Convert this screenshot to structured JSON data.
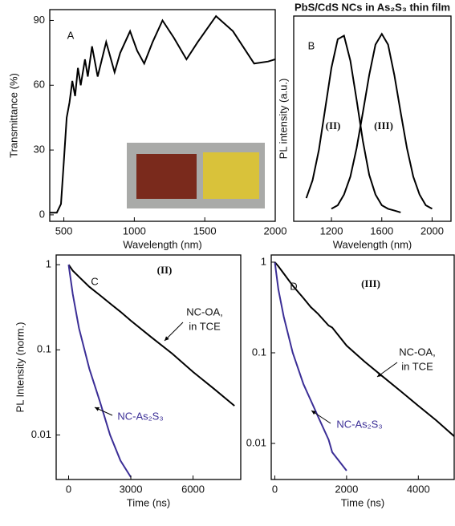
{
  "chart_data": [
    {
      "type": "line",
      "panel_label": "A",
      "xlabel": "Wavelength (nm)",
      "ylabel": "Transmittance (%)",
      "x": [
        400,
        450,
        480,
        500,
        520,
        540,
        560,
        580,
        600,
        620,
        650,
        670,
        700,
        740,
        800,
        860,
        900,
        970,
        1020,
        1070,
        1130,
        1200,
        1280,
        1370,
        1450,
        1580,
        1700,
        1850,
        1950,
        2000
      ],
      "series": [
        {
          "color": "#000000",
          "values": [
            1,
            1,
            5,
            25,
            45,
            52,
            62,
            55,
            68,
            60,
            72,
            64,
            78,
            64,
            80,
            66,
            75,
            85,
            76,
            70,
            80,
            90,
            82,
            72,
            80,
            92,
            85,
            70,
            71,
            72
          ]
        }
      ],
      "xlim": [
        400,
        2000
      ],
      "xticks": [
        500,
        1000,
        1500,
        2000
      ],
      "ylim": [
        -3,
        95
      ],
      "yticks": [
        0,
        30,
        60,
        90
      ],
      "log_y": false
    },
    {
      "type": "line",
      "panel_label": "B",
      "title": "PbS/CdS NCs in As₂S₃ thin film",
      "xlabel": "Wavelength (nm)",
      "ylabel": "PL intensity (a.u.)",
      "annotations": [
        "(II)",
        "(III)"
      ],
      "x": [
        1000,
        1050,
        1100,
        1150,
        1200,
        1250,
        1300,
        1350,
        1400,
        1450,
        1500,
        1550,
        1600,
        1650,
        1700,
        1750,
        1800,
        1850,
        1900,
        1950,
        2000
      ],
      "series": [
        {
          "color": "#000000",
          "values": [
            0.08,
            0.18,
            0.35,
            0.58,
            0.81,
            0.97,
            0.99,
            0.85,
            0.63,
            0.4,
            0.21,
            0.1,
            0.04,
            0.02,
            0.01,
            0.0,
            null,
            null,
            null,
            null,
            null
          ]
        },
        {
          "color": "#000000",
          "values": [
            null,
            null,
            null,
            null,
            0.02,
            0.04,
            0.1,
            0.2,
            0.36,
            0.56,
            0.77,
            0.94,
            1,
            0.94,
            0.77,
            0.56,
            0.36,
            0.2,
            0.1,
            0.04,
            0.02
          ]
        }
      ],
      "xlim": [
        900,
        2150
      ],
      "xticks": [
        1200,
        1600,
        2000
      ],
      "ylim": [
        -0.05,
        1.1
      ],
      "log_y": false
    },
    {
      "type": "line",
      "panel_label": "C",
      "xlabel": "Time (ns)",
      "ylabel": "PL Intensity (norm.)",
      "annotations": [
        "(II)",
        "NC-OA,",
        "in TCE",
        "NC-As₂S₃"
      ],
      "x": [
        0,
        200,
        500,
        1000,
        1500,
        2000,
        2500,
        3000,
        4000,
        5000,
        6000,
        7000,
        8000
      ],
      "series": [
        {
          "color": "#000000",
          "values": [
            1,
            0.85,
            0.72,
            0.55,
            0.44,
            0.35,
            0.28,
            0.22,
            0.14,
            0.09,
            0.055,
            0.035,
            0.022
          ]
        },
        {
          "color": "#3b2e96",
          "values": [
            1,
            0.45,
            0.18,
            0.06,
            0.025,
            0.01,
            0.005,
            0.0032,
            null,
            null,
            null,
            null,
            null
          ]
        }
      ],
      "xlim": [
        -600,
        8300
      ],
      "xticks": [
        0,
        3000,
        6000
      ],
      "ylim": [
        0.003,
        1.3
      ],
      "yticks": [
        0.01,
        0.1,
        1
      ],
      "log_y": true
    },
    {
      "type": "line",
      "panel_label": "D",
      "xlabel": "Time (ns)",
      "annotations": [
        "(III)",
        "NC-OA,",
        "in TCE",
        "NC-As₂S₃"
      ],
      "x": [
        0,
        100,
        250,
        500,
        800,
        1000,
        1200,
        1500,
        1600,
        2000,
        2500,
        3000,
        3500,
        4000,
        4500,
        5000
      ],
      "series": [
        {
          "color": "#000000",
          "values": [
            1,
            0.9,
            0.75,
            0.55,
            0.4,
            0.32,
            0.27,
            0.2,
            0.19,
            0.12,
            0.08,
            0.055,
            0.038,
            0.026,
            0.018,
            0.012
          ]
        },
        {
          "color": "#3b2e96",
          "values": [
            1,
            0.5,
            0.25,
            0.1,
            0.045,
            0.03,
            0.02,
            0.011,
            0.008,
            0.005,
            null,
            null,
            null,
            null,
            null,
            null
          ]
        }
      ],
      "xlim": [
        -100,
        5000
      ],
      "xticks": [
        0,
        2000,
        4000
      ],
      "ylim": [
        0.004,
        1.2
      ],
      "yticks": [
        0.01,
        0.1,
        1
      ],
      "log_y": true
    }
  ]
}
